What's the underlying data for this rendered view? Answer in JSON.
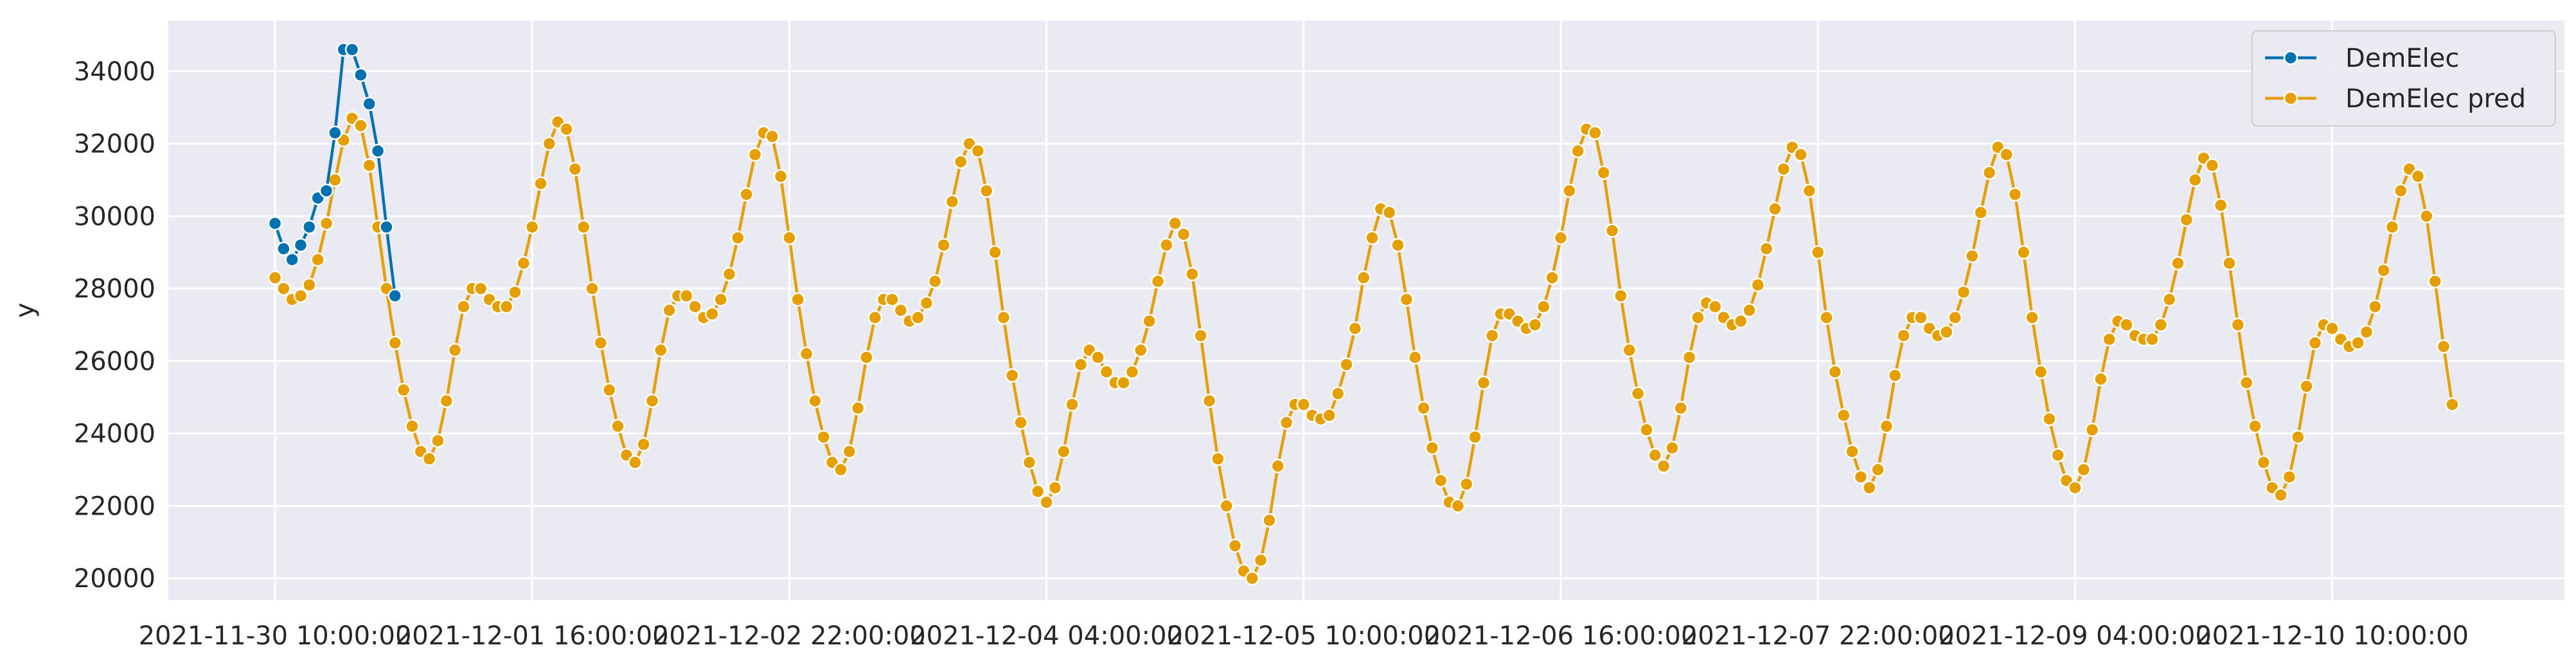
{
  "chart_data": {
    "type": "line",
    "xlabel": "",
    "ylabel": "y",
    "ylim": [
      19400,
      35400
    ],
    "yticks": [
      20000,
      22000,
      24000,
      26000,
      28000,
      30000,
      32000,
      34000
    ],
    "xticks": [
      {
        "label": "2021-11-30 10:00:00",
        "index": 0
      },
      {
        "label": "2021-12-01 16:00:00",
        "index": 30
      },
      {
        "label": "2021-12-02 22:00:00",
        "index": 60
      },
      {
        "label": "2021-12-04 04:00:00",
        "index": 90
      },
      {
        "label": "2021-12-05 10:00:00",
        "index": 120
      },
      {
        "label": "2021-12-06 16:00:00",
        "index": 150
      },
      {
        "label": "2021-12-07 22:00:00",
        "index": 180
      },
      {
        "label": "2021-12-09 04:00:00",
        "index": 210
      },
      {
        "label": "2021-12-10 10:00:00",
        "index": 240
      }
    ],
    "x_start": "2021-11-30 10:00:00",
    "x_step": "1 hour",
    "grid": true,
    "legend_position": "top-right",
    "series": [
      {
        "name": "DemElec",
        "color": "#0072b2",
        "start_index": 0,
        "values": [
          29800,
          29100,
          28800,
          29200,
          29700,
          30500,
          30700,
          32300,
          34600,
          34600,
          33900,
          33100,
          31800,
          29700,
          27800
        ]
      },
      {
        "name": "DemElec pred",
        "color": "#e69f00",
        "start_index": 0,
        "values": [
          28300,
          28000,
          27700,
          27800,
          28100,
          28800,
          29800,
          31000,
          32100,
          32700,
          32500,
          31400,
          29700,
          28000,
          26500,
          25200,
          24200,
          23500,
          23300,
          23800,
          24900,
          26300,
          27500,
          28000,
          28000,
          27700,
          27500,
          27500,
          27900,
          28700,
          29700,
          30900,
          32000,
          32600,
          32400,
          31300,
          29700,
          28000,
          26500,
          25200,
          24200,
          23400,
          23200,
          23700,
          24900,
          26300,
          27400,
          27800,
          27800,
          27500,
          27200,
          27300,
          27700,
          28400,
          29400,
          30600,
          31700,
          32300,
          32200,
          31100,
          29400,
          27700,
          26200,
          24900,
          23900,
          23200,
          23000,
          23500,
          24700,
          26100,
          27200,
          27700,
          27700,
          27400,
          27100,
          27200,
          27600,
          28200,
          29200,
          30400,
          31500,
          32000,
          31800,
          30700,
          29000,
          27200,
          25600,
          24300,
          23200,
          22400,
          22100,
          22500,
          23500,
          24800,
          25900,
          26300,
          26100,
          25700,
          25400,
          25400,
          25700,
          26300,
          27100,
          28200,
          29200,
          29800,
          29500,
          28400,
          26700,
          24900,
          23300,
          22000,
          20900,
          20200,
          20000,
          20500,
          21600,
          23100,
          24300,
          24800,
          24800,
          24500,
          24400,
          24500,
          25100,
          25900,
          26900,
          28300,
          29400,
          30200,
          30100,
          29200,
          27700,
          26100,
          24700,
          23600,
          22700,
          22100,
          22000,
          22600,
          23900,
          25400,
          26700,
          27300,
          27300,
          27100,
          26900,
          27000,
          27500,
          28300,
          29400,
          30700,
          31800,
          32400,
          32300,
          31200,
          29600,
          27800,
          26300,
          25100,
          24100,
          23400,
          23100,
          23600,
          24700,
          26100,
          27200,
          27600,
          27500,
          27200,
          27000,
          27100,
          27400,
          28100,
          29100,
          30200,
          31300,
          31900,
          31700,
          30700,
          29000,
          27200,
          25700,
          24500,
          23500,
          22800,
          22500,
          23000,
          24200,
          25600,
          26700,
          27200,
          27200,
          26900,
          26700,
          26800,
          27200,
          27900,
          28900,
          30100,
          31200,
          31900,
          31700,
          30600,
          29000,
          27200,
          25700,
          24400,
          23400,
          22700,
          22500,
          23000,
          24100,
          25500,
          26600,
          27100,
          27000,
          26700,
          26600,
          26600,
          27000,
          27700,
          28700,
          29900,
          31000,
          31600,
          31400,
          30300,
          28700,
          27000,
          25400,
          24200,
          23200,
          22500,
          22300,
          22800,
          23900,
          25300,
          26500,
          27000,
          26900,
          26600,
          26400,
          26500,
          26800,
          27500,
          28500,
          29700,
          30700,
          31300,
          31100,
          30000,
          28200,
          26400,
          24800
        ]
      }
    ]
  }
}
